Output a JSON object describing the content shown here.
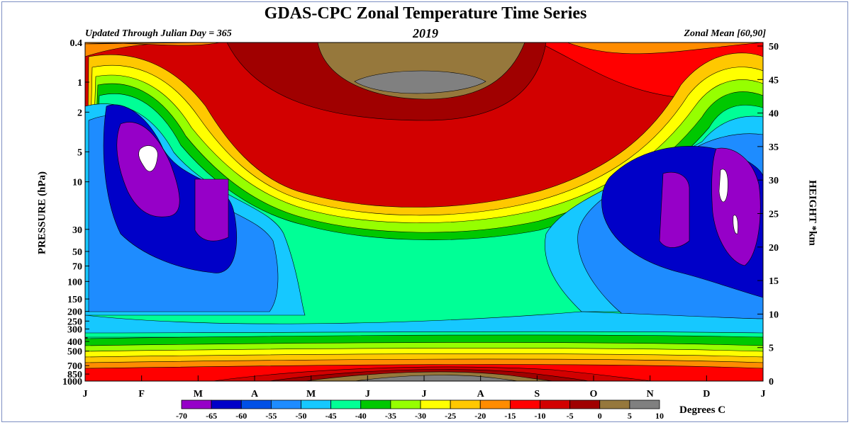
{
  "chart_data": {
    "type": "heatmap",
    "title": "GDAS-CPC Zonal Temperature Time Series",
    "subtitle_left": "Updated Through Julian Day = 365",
    "subtitle_center": "2019",
    "subtitle_right": "Zonal Mean [60,90]",
    "ylabel_left": "PRESSURE (hPa)",
    "ylabel_right": "HEIGHT *km",
    "colorbar_label": "Degrees C",
    "x_ticks": [
      "J",
      "F",
      "M",
      "A",
      "M",
      "J",
      "J",
      "A",
      "S",
      "O",
      "N",
      "D",
      "J"
    ],
    "pressure_ticks": [
      "0.4",
      "1",
      "2",
      "5",
      "10",
      "30",
      "50",
      "70",
      "100",
      "150",
      "200",
      "250",
      "300",
      "400",
      "500",
      "700",
      "850",
      "1000"
    ],
    "pressure_values": [
      0.4,
      1,
      2,
      5,
      10,
      30,
      50,
      70,
      100,
      150,
      200,
      250,
      300,
      400,
      500,
      700,
      850,
      1000
    ],
    "height_ticks": [
      "0",
      "5",
      "10",
      "15",
      "20",
      "25",
      "30",
      "35",
      "40",
      "45",
      "50"
    ],
    "height_values": [
      0,
      5,
      10,
      15,
      20,
      25,
      30,
      35,
      40,
      45,
      50
    ],
    "levels": [
      -70,
      -65,
      -60,
      -55,
      -50,
      -45,
      -40,
      -35,
      -30,
      -25,
      -20,
      -15,
      -10,
      -5,
      0,
      5,
      10
    ],
    "level_labels": [
      "-70",
      "-65",
      "-60",
      "-55",
      "-50",
      "-45",
      "-40",
      "-35",
      "-30",
      "-25",
      "-20",
      "-15",
      "-10",
      "-5",
      "0",
      "5",
      "10"
    ],
    "level_colors": [
      "#9600c8",
      "#0000c8",
      "#0050e6",
      "#1e8cff",
      "#16c8ff",
      "#00ff96",
      "#00c800",
      "#96ff00",
      "#ffff00",
      "#ffc800",
      "#ff8c00",
      "#ff0000",
      "#d20000",
      "#a00000",
      "#96783c",
      "#808080",
      "#a0a0a0"
    ],
    "regions": [
      {
        "name": "lower-stratosphere-green",
        "color_index": 5
      },
      {
        "name": "lower-troposphere-cyan",
        "color_index": 4
      },
      {
        "name": "left-vortex-blue",
        "color_index": 3
      },
      {
        "name": "left-vortex-dark-blue",
        "color_index": 1
      },
      {
        "name": "left-vortex-core",
        "color_index": 0
      },
      {
        "name": "right-vortex-blue",
        "color_index": 3
      },
      {
        "name": "right-vortex-dark-blue",
        "color_index": 1
      },
      {
        "name": "right-vortex-core",
        "color_index": 0
      },
      {
        "name": "summer-stratopause-max",
        "color_index": 15
      },
      {
        "name": "surface-warm-max",
        "color_index": 15
      }
    ]
  }
}
